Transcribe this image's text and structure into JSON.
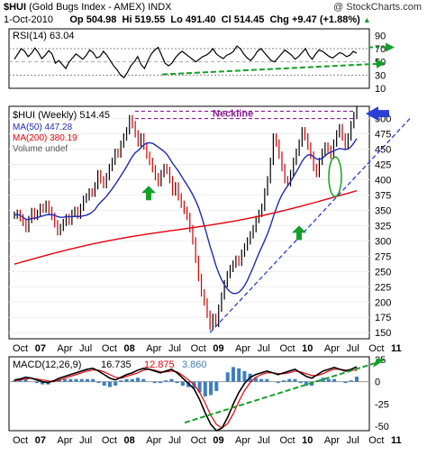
{
  "header": {
    "symbol": "$HUI",
    "name": "(Gold Bugs Index - AMEX)",
    "exchange": "INDX",
    "watermark": "@ StockCharts.com",
    "date": "1-Oct-2010",
    "op_label": "Op",
    "op": "504.98",
    "hi_label": "Hi",
    "hi": "519.55",
    "lo_label": "Lo",
    "lo": "491.40",
    "cl_label": "Cl",
    "cl": "514.45",
    "chg_label": "Chg",
    "chg": "+9.47 (+1.88%)",
    "chg_arrow": "up-triangle-icon"
  },
  "colors": {
    "price_bar_up": "#000000",
    "price_bar_down": "#cc0000",
    "ma50": "#1f2bb0",
    "ma200": "#e8000b",
    "trend_up": "#2a3fd6",
    "trend_green": "#14a028",
    "neckline": "#8b1a9b",
    "macd": "#000000",
    "signal": "#e8000b",
    "histogram": "#3d7fbf",
    "rsi": "#000000"
  },
  "chart_data": [
    {
      "type": "line",
      "panel": "rsi",
      "legend": "RSI(14) 63.04",
      "ylim": [
        10,
        100
      ],
      "yticks": [
        10,
        30,
        50,
        70,
        90
      ],
      "guides": [
        30,
        70
      ],
      "series": [
        {
          "name": "RSI(14)",
          "values": [
            54,
            62,
            70,
            66,
            58,
            63,
            71,
            64,
            55,
            60,
            67,
            62,
            48,
            52,
            46,
            40,
            50,
            56,
            62,
            58,
            54,
            60,
            68,
            64,
            56,
            58,
            66,
            60,
            52,
            44,
            38,
            30,
            26,
            34,
            44,
            50,
            58,
            46,
            40,
            52,
            62,
            68,
            72,
            60,
            48,
            44,
            48,
            56,
            62,
            66,
            62,
            58,
            54,
            50,
            54,
            58,
            60,
            64,
            70,
            62,
            58,
            55,
            60,
            62,
            66,
            74,
            70,
            62,
            56,
            52,
            58,
            66,
            70,
            64,
            58,
            52,
            50,
            56,
            62,
            68,
            64,
            60,
            54,
            58,
            64,
            70,
            60,
            54,
            62,
            68,
            66,
            62,
            58,
            56,
            60,
            64,
            62,
            58,
            60,
            66,
            63
          ]
        }
      ],
      "annotation_arrows": [
        "up-trend-arrow",
        "right-arrow"
      ]
    },
    {
      "type": "bar",
      "panel": "price",
      "title": "$HUI (Weekly) 514.45",
      "legend": [
        "MA(50) 447.28",
        "MA(200) 380.19",
        "Volume undef"
      ],
      "ylim": [
        140,
        520
      ],
      "yticks": [
        150,
        175,
        200,
        225,
        250,
        275,
        300,
        325,
        350,
        375,
        400,
        425,
        450,
        475,
        500
      ],
      "x_labels": [
        "Oct",
        "07",
        "Apr",
        "Jul",
        "Oct",
        "08",
        "Apr",
        "Jul",
        "Oct",
        "09",
        "Apr",
        "Jul",
        "Oct",
        "10",
        "Apr",
        "Jul",
        "Oct",
        "11"
      ],
      "annotations": [
        "Neckline"
      ],
      "close": [
        342,
        345,
        338,
        330,
        320,
        335,
        348,
        340,
        345,
        355,
        352,
        360,
        350,
        340,
        328,
        315,
        322,
        330,
        338,
        332,
        345,
        350,
        342,
        355,
        368,
        372,
        380,
        378,
        390,
        410,
        400,
        392,
        405,
        420,
        430,
        445,
        442,
        458,
        470,
        480,
        500,
        490,
        475,
        460,
        470,
        455,
        440,
        430,
        418,
        405,
        395,
        410,
        420,
        415,
        400,
        380,
        390,
        372,
        360,
        350,
        340,
        320,
        300,
        270,
        240,
        215,
        200,
        180,
        160,
        175,
        165,
        190,
        210,
        230,
        245,
        255,
        262,
        270,
        265,
        280,
        290,
        300,
        310,
        320,
        335,
        345,
        355,
        380,
        400,
        430,
        470,
        460,
        440,
        420,
        400,
        395,
        410,
        430,
        445,
        460,
        480,
        470,
        455,
        440,
        420,
        410,
        430,
        445,
        455,
        450,
        440,
        460,
        475,
        485,
        470,
        455,
        470,
        490,
        505,
        514
      ]
    },
    {
      "type": "line",
      "panel": "macd",
      "legend": [
        "MACD(12,26,9)",
        "16.735",
        "12.875",
        "3.860"
      ],
      "ylim": [
        -55,
        28
      ],
      "yticks": [
        -50,
        -25,
        0,
        25
      ],
      "x_labels": [
        "Oct",
        "07",
        "Apr",
        "Jul",
        "Oct",
        "08",
        "Apr",
        "Jul",
        "Oct",
        "09",
        "Apr",
        "Jul",
        "Oct",
        "10",
        "Apr",
        "Jul",
        "Oct",
        "11"
      ],
      "series": [
        {
          "name": "MACD",
          "values": [
            2,
            3,
            5,
            4,
            2,
            0,
            -1,
            1,
            4,
            6,
            8,
            10,
            12,
            14,
            15,
            12,
            8,
            4,
            2,
            5,
            8,
            10,
            13,
            15,
            14,
            12,
            10,
            12,
            14,
            10,
            4,
            -2,
            -8,
            -20,
            -35,
            -48,
            -55,
            -52,
            -40,
            -25,
            -12,
            -2,
            5,
            8,
            10,
            12,
            10,
            8,
            10,
            12,
            14,
            10,
            6,
            4,
            8,
            12,
            14,
            16,
            14,
            12,
            14,
            16.7
          ]
        },
        {
          "name": "Signal",
          "values": [
            1,
            2,
            3,
            4,
            3,
            2,
            1,
            0,
            2,
            4,
            6,
            8,
            10,
            12,
            13,
            13,
            11,
            8,
            5,
            4,
            6,
            8,
            10,
            13,
            14,
            13,
            11,
            11,
            12,
            11,
            7,
            2,
            -3,
            -12,
            -24,
            -38,
            -48,
            -52,
            -47,
            -36,
            -22,
            -10,
            -1,
            5,
            8,
            10,
            10,
            9,
            9,
            10,
            12,
            11,
            9,
            7,
            7,
            9,
            12,
            14,
            14,
            13,
            13,
            12.9
          ]
        }
      ],
      "histogram_name": "Histogram",
      "annotation_arrows": [
        "up-trend-arrow"
      ]
    }
  ]
}
